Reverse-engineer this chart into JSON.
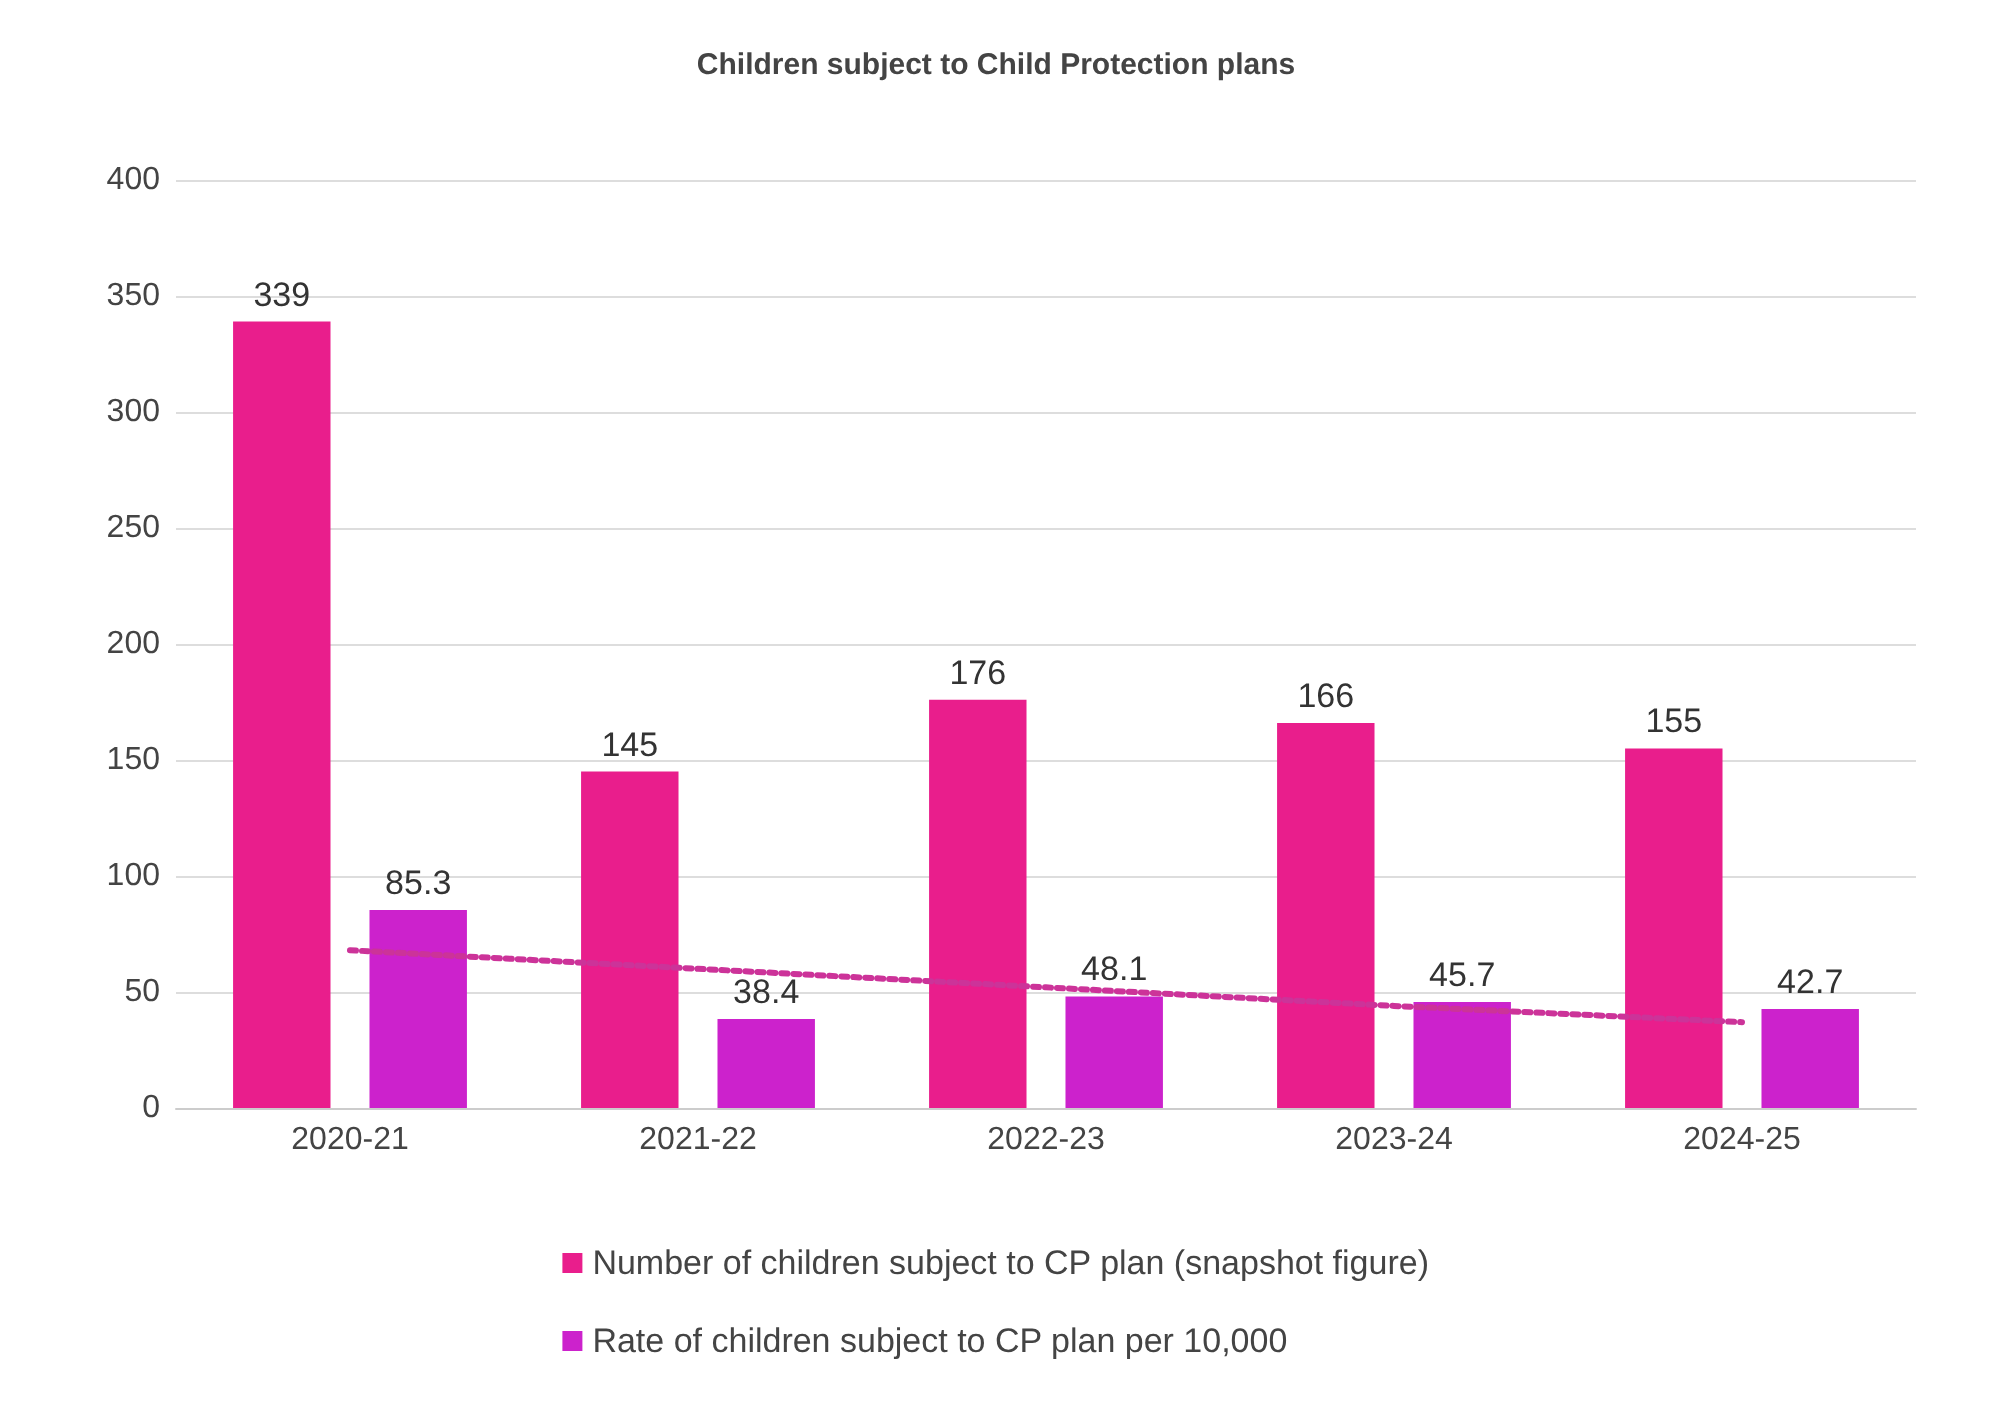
{
  "chart_data": {
    "type": "bar",
    "title": "Children subject to Child Protection plans",
    "categories": [
      "2020-21",
      "2021-22",
      "2022-23",
      "2023-24",
      "2024-25"
    ],
    "series": [
      {
        "name": "Number of children subject to CP plan (snapshot figure)",
        "color": "#e91e8c",
        "values": [
          339,
          145,
          176,
          166,
          155
        ],
        "value_labels": [
          "339",
          "145",
          "176",
          "166",
          "155"
        ]
      },
      {
        "name": "Rate of children subject to CP plan per 10,000",
        "color": "#cc22cc",
        "values": [
          85.3,
          38.4,
          48.1,
          45.7,
          42.7
        ],
        "value_labels": [
          "85.3",
          "38.4",
          "48.1",
          "45.7",
          "42.7"
        ]
      },
      {
        "type": "line",
        "color": "#cc3399",
        "values": [
          68,
          60,
          52,
          44,
          37
        ],
        "line_style": "dotted",
        "marker": "none"
      }
    ],
    "ylim": [
      0,
      400
    ],
    "yticks": [
      0,
      50,
      100,
      150,
      200,
      250,
      300,
      350,
      400
    ],
    "grid": "y",
    "legend": "bottom"
  }
}
